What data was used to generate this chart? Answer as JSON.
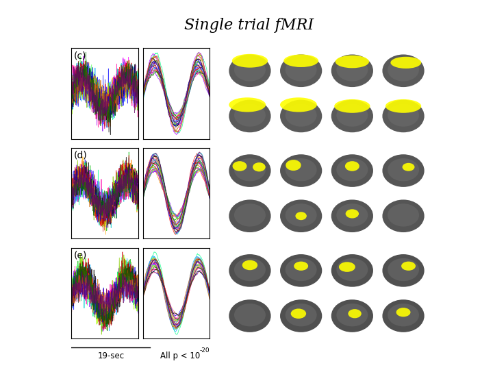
{
  "title": "Single trial fMRI",
  "title_bg_color": "#FFFF00",
  "title_fontsize": 16,
  "title_style": "italic",
  "label_c": "(c)",
  "label_d": "(d)",
  "label_e": "(e)",
  "xlabel_left": "19-sec",
  "xlabel_right_super": "-20",
  "bg_color": "#ffffff",
  "n_lines": 25,
  "line_colors": [
    "#ff0000",
    "#00bb00",
    "#0000ff",
    "#ff00ff",
    "#00cccc",
    "#ff8800",
    "#8800ff",
    "#00ff88",
    "#ff0088",
    "#4444ff",
    "#ffaa00",
    "#aaff00",
    "#00aaff",
    "#ff00aa",
    "#aa00ff",
    "#88cc00",
    "#ff6666",
    "#66ff66",
    "#6666ff",
    "#000000",
    "#cc0000",
    "#0000cc",
    "#cc6600",
    "#006600",
    "#660066"
  ],
  "mri_bg": "#000000",
  "fig_width": 7.2,
  "fig_height": 5.4,
  "fig_dpi": 100
}
